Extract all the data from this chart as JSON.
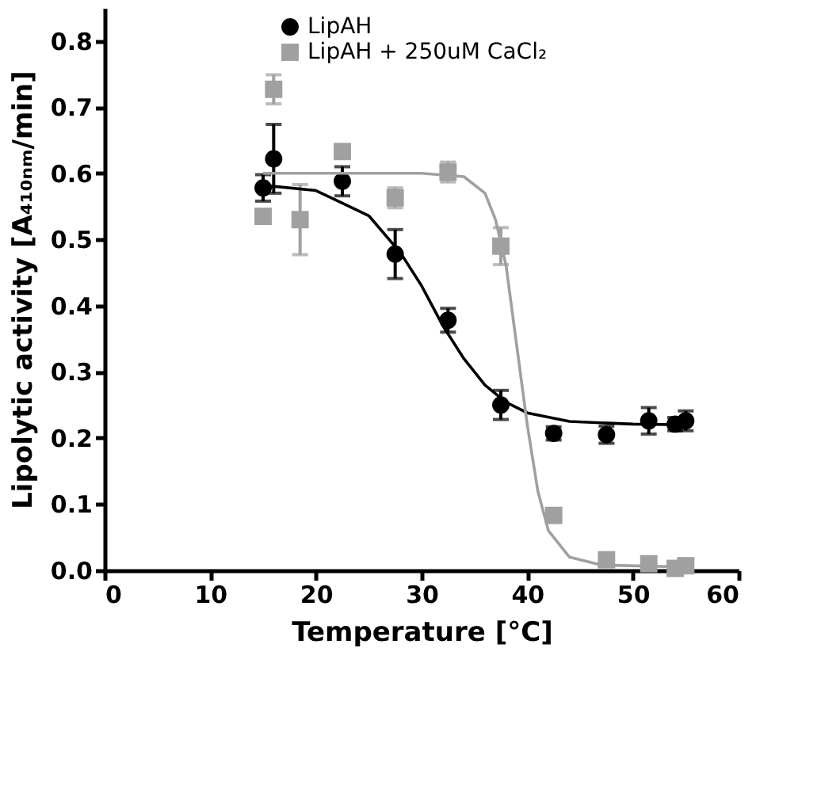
{
  "chart_data": {
    "type": "scatter",
    "xlabel": "Temperature [°C]",
    "ylabel": "Lipolytic activity [A₄₁₀ₙₘ/min]",
    "xlim": [
      0,
      60
    ],
    "xticks": [
      0,
      10,
      20,
      30,
      40,
      50,
      60
    ],
    "ylim": [
      0,
      0.85
    ],
    "yticks": [
      {
        "value": 0,
        "label": "0.0"
      },
      0.1,
      0.2,
      0.3,
      0.4,
      0.5,
      0.6,
      0.7,
      0.8
    ],
    "grid": false,
    "legend": "top",
    "series": [
      {
        "name": "LipAH",
        "color": "#000000",
        "marker": "circle",
        "x": [
          15,
          16,
          22.5,
          27.5,
          32.5,
          37.5,
          42.5,
          47.5,
          51.5,
          54,
          55
        ],
        "values": [
          0.578,
          0.622,
          0.588,
          0.478,
          0.378,
          0.25,
          0.207,
          0.205,
          0.226,
          0.221,
          0.226
        ],
        "errors": [
          0.02,
          0.052,
          0.022,
          0.037,
          0.018,
          0.022,
          0.01,
          0.013,
          0.02,
          0.01,
          0.015
        ]
      },
      {
        "name": "LipAH + 250uM  CaCl₂",
        "color": "#a0a0a0",
        "marker": "square",
        "x": [
          15,
          16,
          18.5,
          22.5,
          27.5,
          32.5,
          37.5,
          42.5,
          47.5,
          51.5,
          54,
          55
        ],
        "values": [
          0.535,
          0.727,
          0.53,
          0.633,
          0.563,
          0.602,
          0.49,
          0.083,
          0.016,
          0.01,
          0.003,
          0.007
        ],
        "errors": [
          0.01,
          0.022,
          0.053,
          null,
          0.015,
          0.015,
          0.028,
          null,
          null,
          null,
          null,
          null
        ]
      },
      {
        "type": "line",
        "color": "#000000",
        "marker": "none",
        "x": [
          15,
          20,
          25,
          28,
          30,
          32,
          34,
          36,
          38,
          40,
          44,
          50,
          55
        ],
        "values": [
          0.582,
          0.574,
          0.536,
          0.48,
          0.43,
          0.37,
          0.32,
          0.28,
          0.254,
          0.238,
          0.225,
          0.221,
          0.22
        ]
      },
      {
        "type": "line",
        "color": "#a0a0a0",
        "marker": "none",
        "x": [
          15,
          30,
          34,
          36,
          37,
          38,
          39,
          40,
          41,
          42,
          44,
          47,
          55
        ],
        "values": [
          0.6,
          0.6,
          0.595,
          0.57,
          0.53,
          0.46,
          0.34,
          0.22,
          0.12,
          0.06,
          0.02,
          0.008,
          0.005
        ]
      }
    ]
  }
}
